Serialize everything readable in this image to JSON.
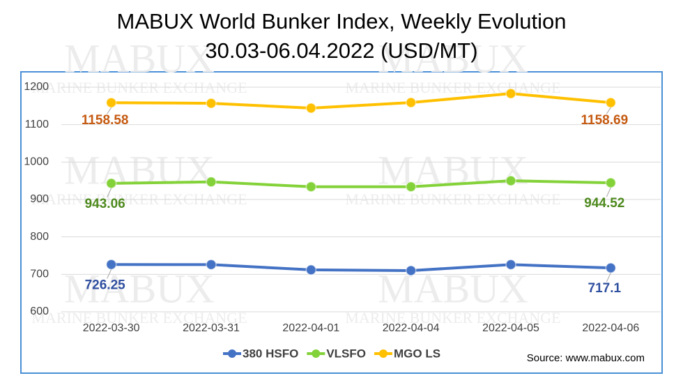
{
  "chart_data": {
    "type": "line",
    "title": "MABUX World Bunker Index, Weekly Evolution",
    "subtitle": "30.03-06.04.2022 (USD/MT)",
    "watermark": "MABUX",
    "watermark_subtitle": "MARINE BUNKER EXCHANGE",
    "source": "Source: www.mabux.com",
    "categories": [
      "2022-03-30",
      "2022-03-31",
      "2022-04-01",
      "2022-04-04",
      "2022-04-05",
      "2022-04-06"
    ],
    "series": [
      {
        "name": "380 HSFO",
        "color": "#4472c4",
        "label_color": "#2f4f9f",
        "values": [
          726.25,
          726,
          712,
          710,
          726,
          717.1
        ]
      },
      {
        "name": "VLSFO",
        "color": "#84d23a",
        "label_color": "#4e8a1e",
        "values": [
          943.06,
          947,
          934,
          934,
          950,
          944.52
        ]
      },
      {
        "name": "MGO LS",
        "color": "#ffc000",
        "label_color": "#c55a11",
        "values": [
          1158.58,
          1157,
          1144,
          1159,
          1183,
          1158.69
        ]
      }
    ],
    "ylim": [
      600,
      1200
    ],
    "yticks": [
      600,
      700,
      800,
      900,
      1000,
      1100,
      1200
    ],
    "grid": true,
    "legend": "bottom"
  }
}
